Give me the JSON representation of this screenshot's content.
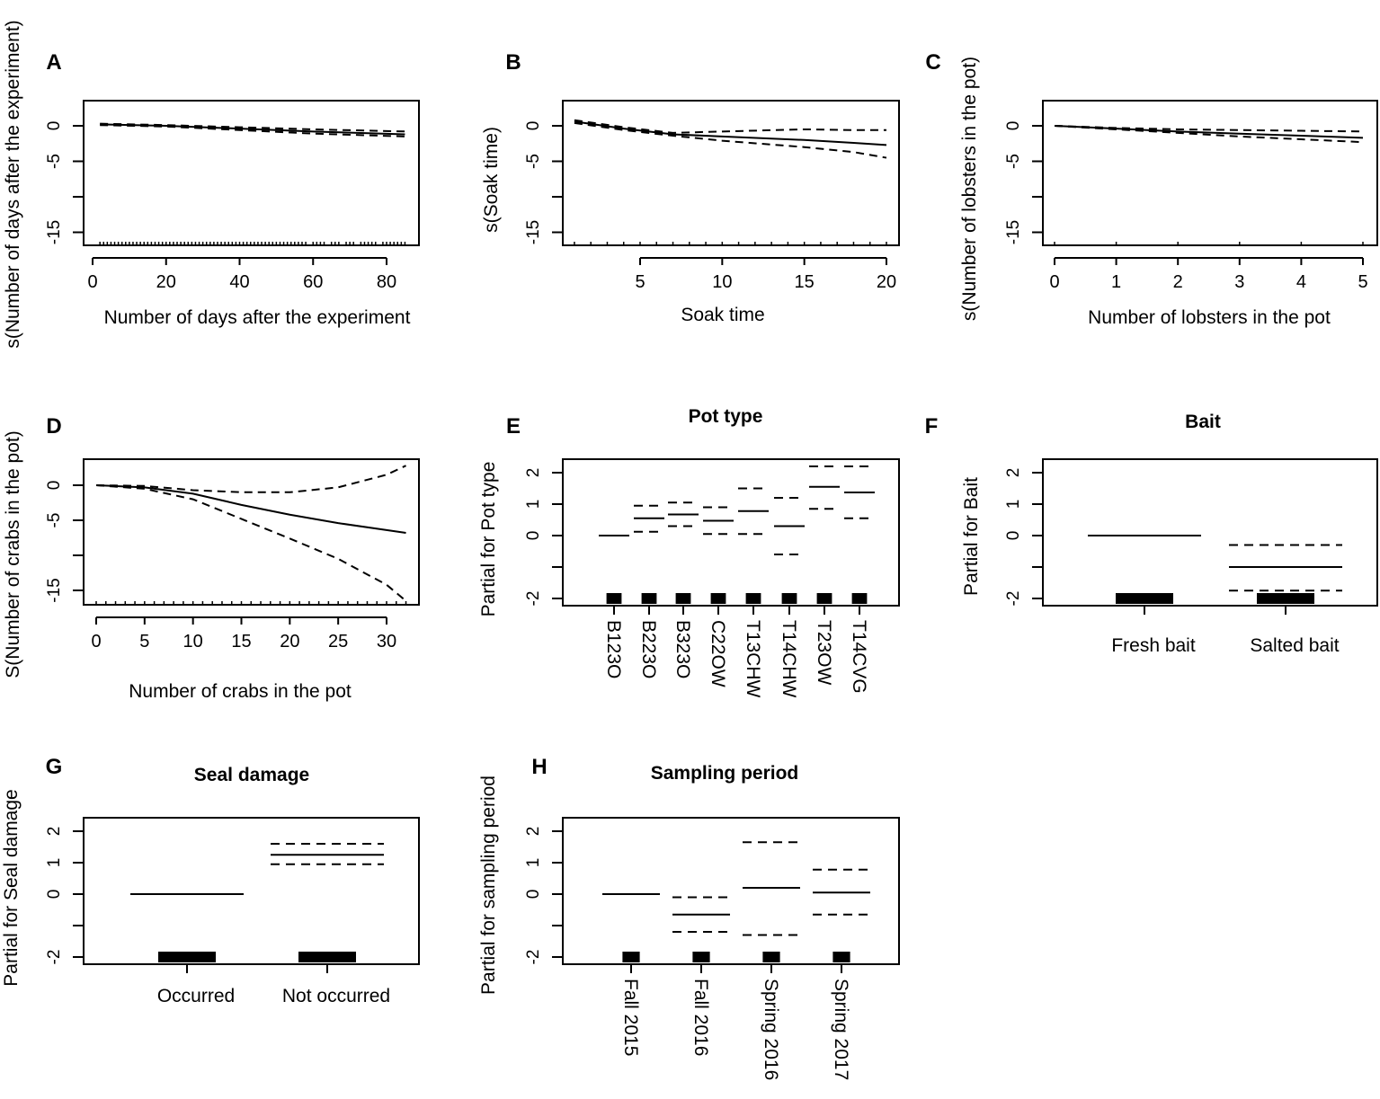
{
  "chart_data": [
    {
      "panel": "A",
      "type": "line",
      "title": "",
      "xlabel": "Number of days after the experiment",
      "ylabel": "s(Number of days after the experiment)",
      "xticks": [
        0,
        20,
        40,
        60,
        80
      ],
      "yticks": [
        0,
        -5,
        -10,
        -15
      ],
      "ytick_labels": [
        "0",
        "-5",
        "",
        "-15"
      ],
      "ylim": [
        -16.8,
        3.5
      ],
      "x": [
        2,
        20,
        40,
        60,
        85
      ],
      "fit": [
        0.2,
        0,
        -0.4,
        -0.8,
        -1.2
      ],
      "upper": [
        0.3,
        0.1,
        -0.2,
        -0.5,
        -0.8
      ],
      "lower": [
        0.1,
        -0.1,
        -0.6,
        -1.1,
        -1.5
      ],
      "rug": [
        2,
        3,
        4,
        5,
        6,
        7,
        8,
        9,
        10,
        11,
        12,
        13,
        14,
        15,
        16,
        17,
        18,
        19,
        20,
        21,
        22,
        23,
        24,
        25,
        26,
        27,
        28,
        29,
        30,
        31,
        32,
        33,
        34,
        35,
        36,
        37,
        38,
        39,
        40,
        41,
        42,
        43,
        44,
        45,
        46,
        47,
        48,
        49,
        50,
        51,
        52,
        53,
        54,
        55,
        56,
        57,
        58,
        60,
        61,
        62,
        63,
        65,
        66,
        67,
        69,
        70,
        71,
        73,
        74,
        75,
        76,
        77,
        79,
        80,
        81,
        82,
        83,
        84,
        85
      ]
    },
    {
      "panel": "B",
      "type": "line",
      "title": "",
      "xlabel": "Soak time",
      "ylabel": "s(Soak time)",
      "xticks": [
        5,
        10,
        15,
        20
      ],
      "yticks": [
        0,
        -5,
        -10,
        -15
      ],
      "ytick_labels": [
        "0",
        "-5",
        "",
        "-15"
      ],
      "ylim": [
        -16.8,
        3.5
      ],
      "x": [
        1,
        4,
        7,
        10,
        15,
        18,
        20
      ],
      "fit": [
        0.6,
        -0.4,
        -1.2,
        -1.5,
        -2.0,
        -2.4,
        -2.7
      ],
      "upper": [
        0.8,
        -0.2,
        -1.0,
        -0.8,
        -0.5,
        -0.6,
        -0.6
      ],
      "lower": [
        0.4,
        -0.6,
        -1.4,
        -2.1,
        -3.0,
        -3.7,
        -4.5
      ],
      "rug": [
        1,
        2,
        3,
        4,
        5,
        6,
        7,
        8,
        9,
        10,
        11,
        12,
        13,
        14,
        15,
        16,
        17,
        18,
        19,
        20
      ]
    },
    {
      "panel": "C",
      "type": "line",
      "title": "",
      "xlabel": "Number of lobsters in the pot",
      "ylabel": "s(Number of lobsters in the pot)",
      "xticks": [
        0,
        1,
        2,
        3,
        4,
        5
      ],
      "yticks": [
        0,
        -5,
        -10,
        -15
      ],
      "ytick_labels": [
        "0",
        "-5",
        "",
        "-15"
      ],
      "ylim": [
        -16.8,
        3.5
      ],
      "x": [
        0,
        1,
        2,
        3,
        4,
        5
      ],
      "fit": [
        0,
        -0.4,
        -0.8,
        -1.1,
        -1.4,
        -1.7
      ],
      "upper": [
        0,
        -0.3,
        -0.5,
        -0.6,
        -0.7,
        -0.8
      ],
      "lower": [
        0,
        -0.5,
        -1.0,
        -1.5,
        -1.9,
        -2.3
      ],
      "rug": [
        0,
        1,
        2,
        3,
        4,
        5
      ]
    },
    {
      "panel": "D",
      "type": "line",
      "title": "",
      "xlabel": "Number of crabs in the pot",
      "ylabel": "S(Number of crabs in the pot)",
      "xticks": [
        0,
        5,
        10,
        15,
        20,
        25,
        30
      ],
      "yticks": [
        0,
        -5,
        -10,
        -15
      ],
      "ytick_labels": [
        "0",
        "-5",
        "",
        "-15"
      ],
      "ylim": [
        -16.8,
        3.5
      ],
      "x": [
        0,
        5,
        10,
        15,
        20,
        25,
        30,
        32
      ],
      "fit": [
        0,
        -0.3,
        -1.2,
        -2.8,
        -4.2,
        -5.4,
        -6.4,
        -6.8
      ],
      "upper": [
        0,
        -0.1,
        -0.7,
        -1.0,
        -1.0,
        -0.3,
        1.5,
        2.8
      ],
      "lower": [
        0,
        -0.5,
        -2.0,
        -4.8,
        -7.6,
        -10.5,
        -14.2,
        -16.5
      ],
      "rug": [
        0,
        1,
        2,
        3,
        4,
        5,
        6,
        7,
        8,
        9,
        10,
        11,
        12,
        13,
        14,
        15,
        16,
        17,
        18,
        19,
        20,
        21,
        22,
        23,
        24,
        25,
        26,
        27,
        28,
        29,
        30,
        31,
        32
      ]
    },
    {
      "panel": "E",
      "type": "factor",
      "title": "Pot type",
      "xlabel": "",
      "ylabel": "Partial for Pot type",
      "yticks": [
        2,
        1,
        0,
        -1,
        -2
      ],
      "ytick_labels": [
        "2",
        "1",
        "0",
        "",
        "-2"
      ],
      "ylim": [
        -2.2,
        2.4
      ],
      "categories": [
        "B123O",
        "B223O",
        "B323O",
        "C22OW",
        "T13CHW",
        "T14CHW",
        "T23OW",
        "T14CVG"
      ],
      "fit": [
        0,
        0.55,
        0.67,
        0.47,
        0.78,
        0.3,
        1.55,
        1.37
      ],
      "upper": [
        null,
        0.95,
        1.05,
        0.9,
        1.5,
        1.2,
        2.2,
        2.2
      ],
      "lower": [
        null,
        0.12,
        0.3,
        0.05,
        0.05,
        -0.6,
        0.85,
        0.55
      ]
    },
    {
      "panel": "F",
      "type": "factor",
      "title": "Bait",
      "xlabel": "",
      "ylabel": "Partial for Bait",
      "yticks": [
        2,
        1,
        0,
        -1,
        -2
      ],
      "ytick_labels": [
        "2",
        "1",
        "0",
        "",
        "-2"
      ],
      "ylim": [
        -2.2,
        2.4
      ],
      "categories": [
        "Fresh bait",
        "Salted bait"
      ],
      "fit": [
        0,
        -1.0
      ],
      "upper": [
        null,
        -0.3
      ],
      "lower": [
        null,
        -1.75
      ]
    },
    {
      "panel": "G",
      "type": "factor",
      "title": "Seal damage",
      "xlabel": "",
      "ylabel": "Partial for Seal damage",
      "yticks": [
        2,
        1,
        0,
        -1,
        -2
      ],
      "ytick_labels": [
        "2",
        "1",
        "0",
        "",
        "-2"
      ],
      "ylim": [
        -2.2,
        2.4
      ],
      "categories": [
        "Occurred",
        "Not occurred"
      ],
      "fit": [
        0,
        1.25
      ],
      "upper": [
        null,
        1.6
      ],
      "lower": [
        null,
        0.95
      ]
    },
    {
      "panel": "H",
      "type": "factor",
      "title": "Sampling period",
      "xlabel": "",
      "ylabel": "Partial for sampling period",
      "yticks": [
        2,
        1,
        0,
        -1,
        -2
      ],
      "ytick_labels": [
        "2",
        "1",
        "0",
        "",
        "-2"
      ],
      "ylim": [
        -2.2,
        2.4
      ],
      "categories": [
        "Fall 2015",
        "Fall 2016",
        "Spring 2016",
        "Spring 2017"
      ],
      "fit": [
        0,
        -0.65,
        0.2,
        0.05
      ],
      "upper": [
        null,
        -0.1,
        1.65,
        0.78
      ],
      "lower": [
        null,
        -1.2,
        -1.3,
        -0.65
      ]
    }
  ]
}
